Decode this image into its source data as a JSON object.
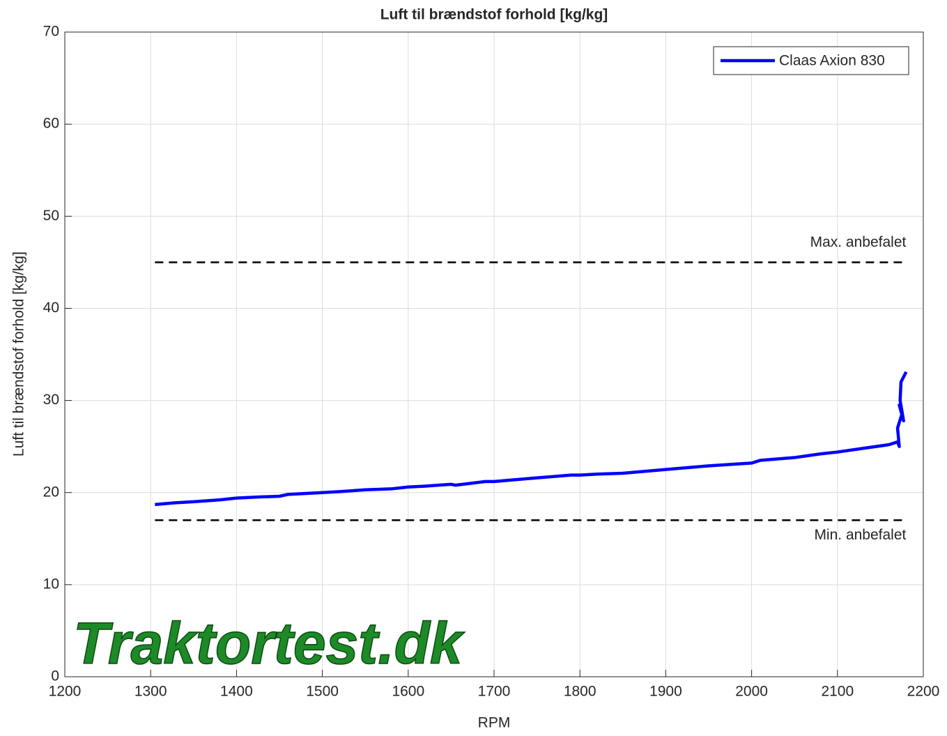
{
  "chart_data": {
    "type": "line",
    "title": "Luft til brændstof forhold [kg/kg]",
    "xlabel": "RPM",
    "ylabel": "Luft til brændstof forhold [kg/kg]",
    "x": [
      1305,
      1330,
      1350,
      1380,
      1400,
      1420,
      1450,
      1460,
      1500,
      1520,
      1550,
      1580,
      1600,
      1620,
      1650,
      1655,
      1690,
      1700,
      1750,
      1790,
      1800,
      1820,
      1850,
      1900,
      1950,
      2000,
      2010,
      2050,
      2080,
      2100,
      2130,
      2160,
      2170,
      2172,
      2170,
      2175,
      2172,
      2177,
      2173,
      2174,
      2180
    ],
    "series": [
      {
        "name": "Claas Axion 830",
        "color": "#0000ff",
        "values": [
          18.7,
          18.9,
          19.0,
          19.2,
          19.4,
          19.5,
          19.6,
          19.8,
          20.0,
          20.1,
          20.3,
          20.4,
          20.6,
          20.7,
          20.9,
          20.8,
          21.2,
          21.2,
          21.6,
          21.9,
          21.9,
          22.0,
          22.1,
          22.5,
          22.9,
          23.2,
          23.5,
          23.8,
          24.2,
          24.4,
          24.8,
          25.2,
          25.5,
          25.0,
          27.0,
          28.5,
          29.5,
          27.8,
          30.0,
          32.0,
          33.1
        ]
      }
    ],
    "reference_lines": [
      {
        "label": "Max. anbefalet",
        "value": 45,
        "x": [
          1305,
          2180
        ],
        "color": "#000000"
      },
      {
        "label": "Min. anbefalet",
        "value": 17,
        "x": [
          1305,
          2180
        ],
        "color": "#000000"
      }
    ],
    "watermark": "Traktortest.dk",
    "xlim": [
      1200,
      2200
    ],
    "xticks": [
      1200,
      1300,
      1400,
      1500,
      1600,
      1700,
      1800,
      1900,
      2000,
      2100,
      2200
    ],
    "ylim": [
      0,
      70
    ],
    "yticks": [
      0,
      10,
      20,
      30,
      40,
      50,
      60,
      70
    ],
    "grid": true,
    "legend": "top-right"
  }
}
